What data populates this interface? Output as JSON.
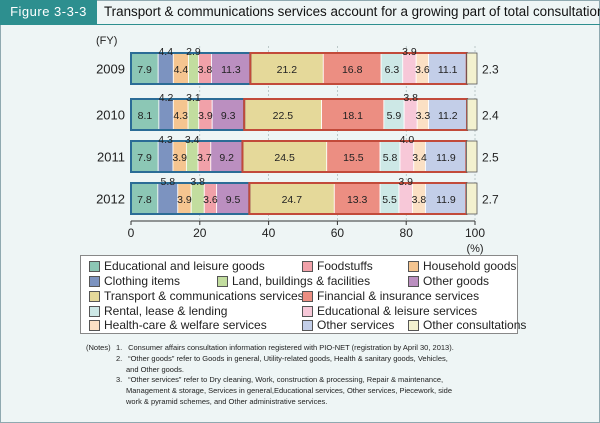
{
  "header": {
    "figure_label": "Figure 3-3-3",
    "title": "Transport & communications services account for a growing part of total consultations"
  },
  "chart_data": {
    "type": "bar",
    "orientation": "horizontal",
    "stacked": true,
    "percent": true,
    "y_axis_label": "(FY)",
    "x_axis_unit": "(%)",
    "xlim": [
      0,
      100
    ],
    "x_ticks": [
      "0",
      "20",
      "40",
      "60",
      "80",
      "100"
    ],
    "categories": [
      "2009",
      "2010",
      "2011",
      "2012"
    ],
    "series": [
      {
        "name": "Educational and leisure goods",
        "color": "#8cc7b5",
        "values": [
          7.9,
          8.1,
          7.9,
          7.8
        ],
        "labels": [
          "7.9",
          "8.1",
          "7.9",
          "7.8"
        ]
      },
      {
        "name": "Clothing items",
        "color": "#7c93c0",
        "values": [
          4.4,
          4.2,
          4.3,
          5.8
        ],
        "labels": [
          "4.4",
          "4.2",
          "4.3",
          "5.8"
        ]
      },
      {
        "name": "Household goods",
        "color": "#f5c590",
        "values": [
          4.4,
          4.3,
          3.9,
          3.9
        ],
        "labels": [
          "4.4",
          "4.3",
          "3.9",
          "3.9"
        ]
      },
      {
        "name": "Land, buildings & facilities",
        "color": "#c2dd9f",
        "values": [
          2.9,
          3.1,
          3.4,
          3.8
        ],
        "labels": [
          "2.9",
          "3.1",
          "3.4",
          "3.8"
        ]
      },
      {
        "name": "Foodstuffs",
        "color": "#f1a1a9",
        "values": [
          3.8,
          3.9,
          3.7,
          3.6
        ],
        "labels": [
          "3.8",
          "3.9",
          "3.7",
          "3.6"
        ]
      },
      {
        "name": "Other goods",
        "color": "#bb8fc0",
        "values": [
          11.3,
          9.3,
          9.2,
          9.5
        ],
        "labels": [
          "11.3",
          "9.3",
          "9.2",
          "9.5"
        ]
      },
      {
        "name": "Transport & communications services",
        "color": "#e5d99a",
        "values": [
          21.2,
          22.5,
          24.5,
          24.7
        ],
        "labels": [
          "21.2",
          "22.5",
          "24.5",
          "24.7"
        ]
      },
      {
        "name": "Financial & insurance services",
        "color": "#ec8e82",
        "values": [
          16.8,
          18.1,
          15.5,
          13.3
        ],
        "labels": [
          "16.8",
          "18.1",
          "15.5",
          "13.3"
        ]
      },
      {
        "name": "Rental, lease & lending",
        "color": "#cde8e6",
        "values": [
          6.3,
          5.9,
          5.8,
          5.5
        ],
        "labels": [
          "6.3",
          "5.9",
          "5.8",
          "5.5"
        ]
      },
      {
        "name": "Educational & leisure services",
        "color": "#f7c8d8",
        "values": [
          3.9,
          3.8,
          4.0,
          3.9
        ],
        "labels": [
          "3.9",
          "3.8",
          "4.0",
          "3.9"
        ]
      },
      {
        "name": "Health-care & welfare services",
        "color": "#fbe0c4",
        "values": [
          3.6,
          3.3,
          3.4,
          3.8
        ],
        "labels": [
          "3.6",
          "3.3",
          "3.4",
          "3.8"
        ]
      },
      {
        "name": "Other services",
        "color": "#c3cee8",
        "values": [
          11.1,
          11.2,
          11.9,
          11.9
        ],
        "labels": [
          "11.1",
          "11.2",
          "11.9",
          "11.9"
        ]
      }
    ],
    "other_consultations": {
      "name": "Other consultations",
      "color": "#f3f1cf",
      "values": [
        2.3,
        2.4,
        2.5,
        2.7
      ],
      "labels": [
        "2.3",
        "2.4",
        "2.5",
        "2.7"
      ]
    },
    "group_outline_colors": {
      "goods": "#2b6c96",
      "services": "#c24a3a"
    }
  },
  "legend": [
    {
      "label": "Educational and leisure goods",
      "color": "#8cc7b5"
    },
    {
      "label": "Foodstuffs",
      "color": "#f1a1a9"
    },
    {
      "label": "Household goods",
      "color": "#f5c590"
    },
    {
      "label": "Clothing items",
      "color": "#7c93c0"
    },
    {
      "label": "Land, buildings & facilities",
      "color": "#c2dd9f"
    },
    {
      "label": "Other goods",
      "color": "#bb8fc0"
    },
    {
      "label": "Transport & communications services",
      "color": "#e5d99a"
    },
    {
      "label": "Financial & insurance services",
      "color": "#ec8e82"
    },
    {
      "label": "Rental, lease & lending",
      "color": "#cde8e6"
    },
    {
      "label": "Educational & leisure services",
      "color": "#f7c8d8"
    },
    {
      "label": "Health-care & welfare services",
      "color": "#fbe0c4"
    },
    {
      "label": "Other services",
      "color": "#c3cee8"
    },
    {
      "label": "Other consultations",
      "color": "#f3f1cf"
    }
  ],
  "notes": {
    "prefix": "(Notes)",
    "items": [
      {
        "num": "1.",
        "lines": [
          "Consumer affairs consultation information registered with PIO-NET (registration by April 30, 2013)."
        ]
      },
      {
        "num": "2.",
        "lines": [
          "“Other goods” refer to Goods in general, Utility-related goods, Health & sanitary goods, Vehicles,",
          "and Other goods."
        ]
      },
      {
        "num": "3.",
        "lines": [
          "“Other services” refer to Dry cleaning, Work, construction & processing, Repair & maintenance,",
          "Management & storage, Services in general,Educational services, Other services, Piecework, side",
          "work & pyramid schemes, and Other administrative services."
        ]
      }
    ]
  }
}
